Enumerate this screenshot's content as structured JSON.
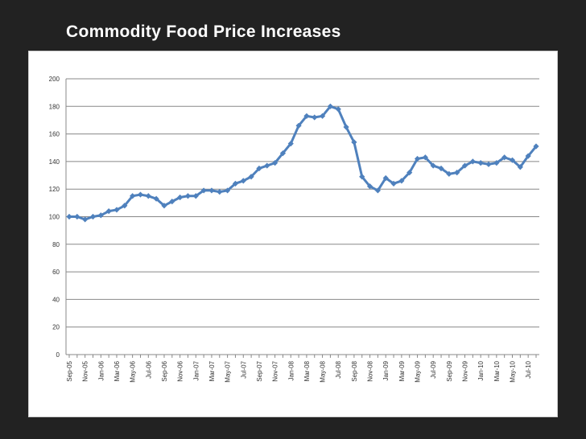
{
  "slide": {
    "title": "Commodity Food Price Increases"
  },
  "colors": {
    "background": "#222222",
    "line": "#4f81bd",
    "grid": "#888888"
  },
  "chart_data": {
    "type": "line",
    "title": "",
    "xlabel": "",
    "ylabel": "",
    "ylim": [
      0,
      200
    ],
    "yticks": [
      0,
      20,
      40,
      60,
      80,
      100,
      120,
      140,
      160,
      180,
      200
    ],
    "grid": true,
    "x_tick_labels": [
      "Sep-05",
      "Nov-05",
      "Jan-06",
      "Mar-06",
      "May-06",
      "Jul-06",
      "Sep-06",
      "Nov-06",
      "Jan-07",
      "Mar-07",
      "May-07",
      "Jul-07",
      "Sep-07",
      "Nov-07",
      "Jan-08",
      "Mar-08",
      "May-08",
      "Jul-08",
      "Sep-08",
      "Nov-08",
      "Jan-09",
      "Mar-09",
      "May-09",
      "Jul-09",
      "Sep-09",
      "Nov-09",
      "Jan-10",
      "Mar-10",
      "May-10",
      "Jul-10"
    ],
    "x": [
      "Sep-05",
      "Oct-05",
      "Nov-05",
      "Dec-05",
      "Jan-06",
      "Feb-06",
      "Mar-06",
      "Apr-06",
      "May-06",
      "Jun-06",
      "Jul-06",
      "Aug-06",
      "Sep-06",
      "Oct-06",
      "Nov-06",
      "Dec-06",
      "Jan-07",
      "Feb-07",
      "Mar-07",
      "Apr-07",
      "May-07",
      "Jun-07",
      "Jul-07",
      "Aug-07",
      "Sep-07",
      "Oct-07",
      "Nov-07",
      "Dec-07",
      "Jan-08",
      "Feb-08",
      "Mar-08",
      "Apr-08",
      "May-08",
      "Jun-08",
      "Jul-08",
      "Aug-08",
      "Sep-08",
      "Oct-08",
      "Nov-08",
      "Dec-08",
      "Jan-09",
      "Feb-09",
      "Mar-09",
      "Apr-09",
      "May-09",
      "Jun-09",
      "Jul-09",
      "Aug-09",
      "Sep-09",
      "Oct-09",
      "Nov-09",
      "Dec-09",
      "Jan-10",
      "Feb-10",
      "Mar-10",
      "Apr-10",
      "May-10",
      "Jun-10",
      "Jul-10",
      "Aug-10"
    ],
    "series": [
      {
        "values": [
          100,
          100,
          98,
          100,
          101,
          104,
          105,
          108,
          115,
          116,
          115,
          113,
          108,
          111,
          114,
          115,
          115,
          119,
          119,
          118,
          119,
          124,
          126,
          129,
          135,
          137,
          139,
          146,
          153,
          166,
          173,
          172,
          173,
          180,
          178,
          165,
          154,
          129,
          122,
          119,
          128,
          124,
          126,
          132,
          142,
          143,
          137,
          135,
          131,
          132,
          137,
          140,
          139,
          138,
          139,
          143,
          141,
          136,
          144,
          151
        ]
      }
    ]
  }
}
